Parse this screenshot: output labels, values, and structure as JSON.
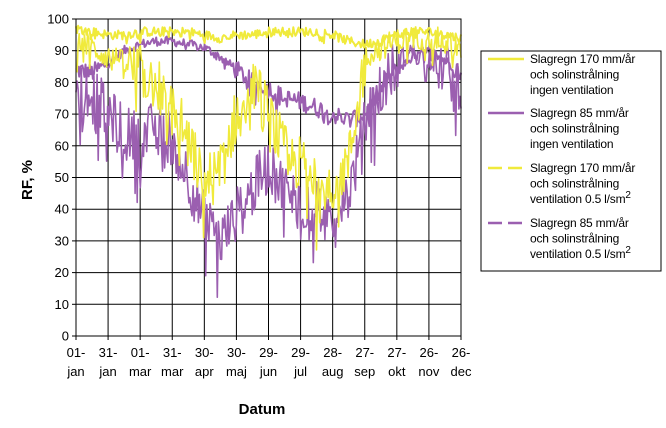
{
  "chart_data": {
    "type": "line",
    "xlabel": "Datum",
    "ylabel": "RF, %",
    "ylim": [
      0,
      100
    ],
    "yticks": [
      "0",
      "10",
      "20",
      "30",
      "40",
      "50",
      "60",
      "70",
      "80",
      "90",
      "100"
    ],
    "xticks": [
      {
        "day": "01-",
        "month": "jan"
      },
      {
        "day": "31-",
        "month": "jan"
      },
      {
        "day": "01-",
        "month": "mar"
      },
      {
        "day": "31-",
        "month": "mar"
      },
      {
        "day": "30-",
        "month": "apr"
      },
      {
        "day": "30-",
        "month": "maj"
      },
      {
        "day": "29-",
        "month": "jun"
      },
      {
        "day": "29-",
        "month": "jul"
      },
      {
        "day": "28-",
        "month": "aug"
      },
      {
        "day": "27-",
        "month": "sep"
      },
      {
        "day": "27-",
        "month": "okt"
      },
      {
        "day": "26-",
        "month": "nov"
      },
      {
        "day": "26-",
        "month": "dec"
      }
    ],
    "grid": true,
    "legend_position": "right",
    "colors": {
      "yellow": "#f0ea3c",
      "purple": "#9b5fb0"
    },
    "x_months": [
      0,
      0.5,
      1,
      1.5,
      2,
      2.5,
      3,
      3.5,
      4,
      4.5,
      5,
      5.5,
      6,
      6.5,
      7,
      7.5,
      8,
      8.5,
      9,
      9.5,
      10,
      10.5,
      11,
      11.5,
      12
    ],
    "series": [
      {
        "name_lines": [
          "Slagregn 170 mm/år",
          "och solinstrålning",
          "ingen ventilation"
        ],
        "color": "#f0ea3c",
        "dash": "solid",
        "values": [
          97,
          96,
          95,
          95,
          96,
          96,
          96,
          96,
          95,
          94,
          95,
          95,
          96,
          96,
          96,
          96,
          95,
          93,
          92,
          93,
          95,
          96,
          96,
          95,
          94
        ]
      },
      {
        "name_lines": [
          "Slagregn 85 mm/år",
          "och solinstrålning",
          "ingen ventilation"
        ],
        "color": "#9b5fb0",
        "dash": "solid",
        "values": [
          84,
          83,
          86,
          90,
          92,
          93,
          93,
          92,
          91,
          88,
          84,
          80,
          78,
          75,
          74,
          72,
          70,
          68,
          70,
          78,
          84,
          88,
          90,
          87,
          83
        ]
      },
      {
        "name_lines": [
          "Slagregn 170 mm/år",
          "och solinstrålning",
          "ventilation 0.5 l/sm"
        ],
        "superscript": "2",
        "color": "#f0ea3c",
        "dash": "dashed",
        "values": [
          93,
          91,
          88,
          86,
          83,
          80,
          72,
          62,
          48,
          52,
          70,
          80,
          70,
          58,
          54,
          50,
          48,
          55,
          88,
          91,
          93,
          94,
          94,
          93,
          90
        ]
      },
      {
        "name_lines": [
          "Slagregn 85 mm/år",
          "och solinstrålning",
          "ventilation 0.5 l/sm"
        ],
        "superscript": "2",
        "color": "#9b5fb0",
        "dash": "dashed",
        "values": [
          82,
          76,
          70,
          64,
          62,
          66,
          62,
          50,
          36,
          30,
          38,
          46,
          54,
          46,
          42,
          40,
          38,
          45,
          66,
          78,
          86,
          90,
          88,
          84,
          80
        ]
      }
    ]
  }
}
